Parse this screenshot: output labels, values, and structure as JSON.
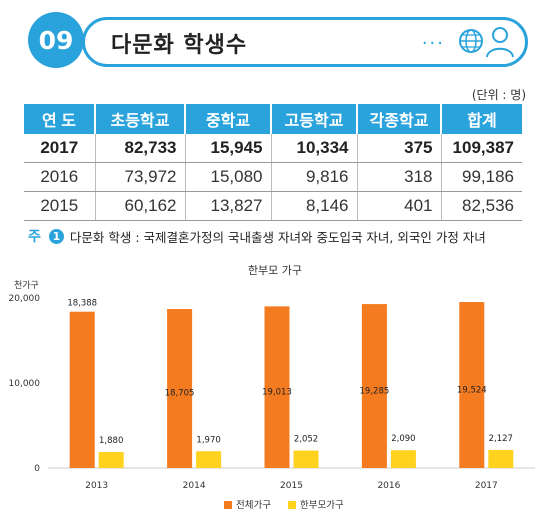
{
  "header": {
    "number": "09",
    "title": "다문화 학생수"
  },
  "table": {
    "unit": "(단위 : 명)",
    "headers": [
      "연 도",
      "초등학교",
      "중학교",
      "고등학교",
      "각종학교",
      "합계"
    ],
    "rows": [
      [
        "2017",
        "82,733",
        "15,945",
        "10,334",
        "375",
        "109,387"
      ],
      [
        "2016",
        "73,972",
        "15,080",
        "9,816",
        "318",
        "99,186"
      ],
      [
        "2015",
        "60,162",
        "13,827",
        "8,146",
        "401",
        "82,536"
      ]
    ]
  },
  "note": {
    "mark": "주",
    "number": "1",
    "text": "다문화 학생 : 국제결혼가정의 국내출생 자녀와 중도입국 자녀, 외국인 가정 자녀"
  },
  "chart_data": {
    "type": "bar",
    "title": "한부모 가구",
    "ylabel": "천가구",
    "ylim": [
      0,
      20000
    ],
    "yticks": [
      "0",
      "10,000",
      "20,000"
    ],
    "categories": [
      "2013",
      "2014",
      "2015",
      "2016",
      "2017"
    ],
    "series": [
      {
        "name": "전체가구",
        "color": "#f47b20",
        "values": [
          18388,
          18705,
          19013,
          19285,
          19524
        ],
        "labels": [
          "18,388",
          "18,705",
          "19,013",
          "19,285",
          "19,524"
        ]
      },
      {
        "name": "한부모가구",
        "color": "#ffd21f",
        "values": [
          1880,
          1970,
          2052,
          2090,
          2127
        ],
        "labels": [
          "1,880",
          "1,970",
          "2,052",
          "2,090",
          "2,127"
        ]
      }
    ],
    "legend": "bottom"
  }
}
